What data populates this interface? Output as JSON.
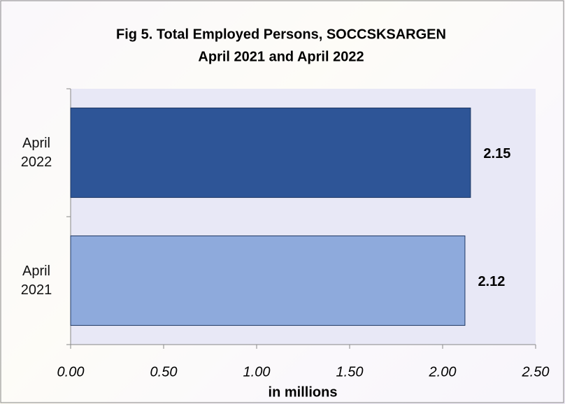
{
  "chart_data": {
    "type": "bar",
    "orientation": "horizontal",
    "title": "Fig 5. Total Employed Persons, SOCCSKSARGEN",
    "subtitle": "April 2021 and April 2022",
    "xlabel": "in millions",
    "categories": [
      "April 2022",
      "April 2021"
    ],
    "values": [
      2.15,
      2.12
    ],
    "colors": [
      "#2e5597",
      "#8eaadc"
    ],
    "xlim": [
      0,
      2.5
    ],
    "xticks": [
      {
        "value": 0,
        "label": "0.00"
      },
      {
        "value": 0.5,
        "label": "0.50"
      },
      {
        "value": 1,
        "label": "1.00"
      },
      {
        "value": 1.5,
        "label": "1.50"
      },
      {
        "value": 2,
        "label": "2.00"
      },
      {
        "value": 2.5,
        "label": "2.50"
      }
    ]
  }
}
